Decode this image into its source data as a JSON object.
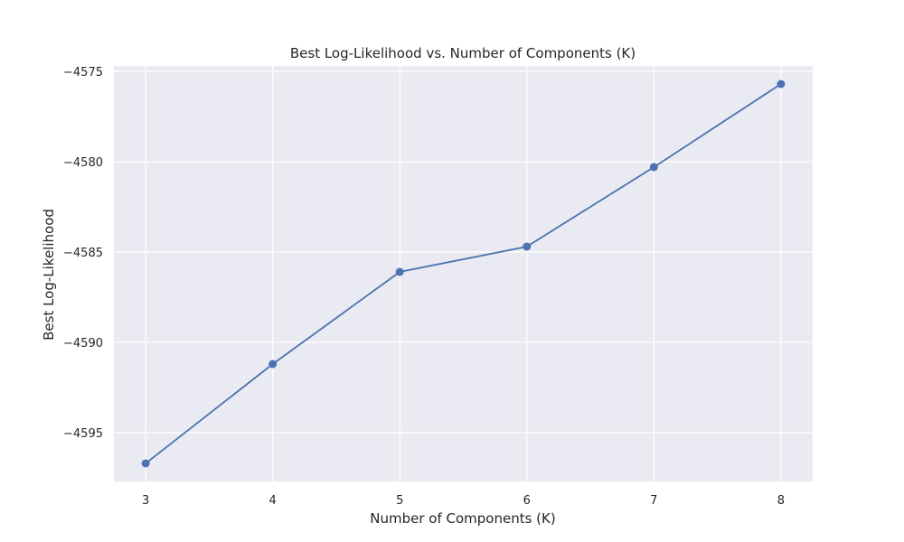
{
  "chart_data": {
    "type": "line",
    "title": "Best Log-Likelihood vs. Number of Components (K)",
    "xlabel": "Number of Components (K)",
    "ylabel": "Best Log-Likelihood",
    "x": [
      3,
      4,
      5,
      6,
      7,
      8
    ],
    "series": [
      {
        "values": [
          -4596.7,
          -4591.2,
          -4586.1,
          -4584.7,
          -4580.3,
          -4575.7
        ]
      }
    ],
    "x_ticks": [
      "3",
      "4",
      "5",
      "6",
      "7",
      "8"
    ],
    "y_ticks": [
      "−4595",
      "−4590",
      "−4585",
      "−4580",
      "−4575"
    ],
    "y_tick_values": [
      -4595,
      -4590,
      -4585,
      -4580,
      -4575
    ],
    "xlim": [
      2.75,
      8.25
    ],
    "ylim": [
      -4597.7,
      -4574.7
    ],
    "grid": true,
    "legend": "none",
    "colors": {
      "background": "#eaeaf2",
      "grid": "#ffffff",
      "line": "#4c72b0",
      "text": "#262626"
    }
  }
}
